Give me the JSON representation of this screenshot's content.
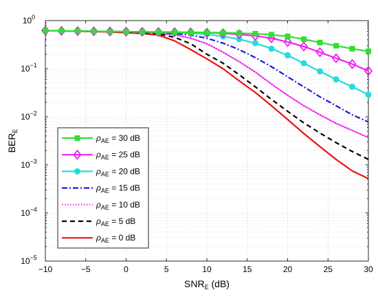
{
  "chart_data": {
    "type": "line",
    "xlabel": "SNR",
    "xlabel_sub": "E",
    "xlabel_suffix": " (dB)",
    "ylabel": "BER",
    "ylabel_sub": "E",
    "y_scale": "log",
    "xlim": [
      -10,
      30
    ],
    "ylim": [
      1e-05,
      1
    ],
    "x_ticks": [
      -10,
      -5,
      0,
      5,
      10,
      15,
      20,
      25,
      30
    ],
    "x_tick_labels": [
      "−10",
      "−5",
      "0",
      "5",
      "10",
      "15",
      "20",
      "25",
      "30"
    ],
    "y_ticks": [
      1e-05,
      0.0001,
      0.001,
      0.01,
      0.1,
      1
    ],
    "y_tick_exponents": [
      "−5",
      "−4",
      "−3",
      "−2",
      "−1",
      "0"
    ],
    "y_tick_base": "10",
    "grid": true,
    "legend_position": "bottom-left",
    "x": [
      -10,
      -8,
      -6,
      -4,
      -2,
      0,
      2,
      4,
      6,
      8,
      10,
      12,
      14,
      16,
      18,
      20,
      22,
      24,
      26,
      28,
      30
    ],
    "series": [
      {
        "name": "ρ_AE = 30 dB",
        "legend_symbol": "ρ",
        "legend_sub": "AE",
        "legend_value": " = 30 dB",
        "color": "#33dd33",
        "marker": "square",
        "dash": "solid",
        "values": [
          0.62,
          0.61,
          0.605,
          0.6,
          0.595,
          0.59,
          0.585,
          0.58,
          0.575,
          0.57,
          0.565,
          0.56,
          0.55,
          0.535,
          0.51,
          0.47,
          0.41,
          0.35,
          0.3,
          0.26,
          0.23
        ]
      },
      {
        "name": "ρ_AE = 25 dB",
        "legend_symbol": "ρ",
        "legend_sub": "AE",
        "legend_value": " = 25 dB",
        "color": "#ee22ee",
        "marker": "diamond",
        "dash": "solid",
        "values": [
          0.62,
          0.61,
          0.605,
          0.6,
          0.595,
          0.59,
          0.585,
          0.58,
          0.575,
          0.57,
          0.56,
          0.545,
          0.52,
          0.48,
          0.43,
          0.36,
          0.29,
          0.22,
          0.165,
          0.125,
          0.09
        ]
      },
      {
        "name": "ρ_AE = 20 dB",
        "legend_symbol": "ρ",
        "legend_sub": "AE",
        "legend_value": " = 20 dB",
        "color": "#22dddd",
        "marker": "circle",
        "dash": "solid",
        "values": [
          0.62,
          0.61,
          0.605,
          0.6,
          0.595,
          0.59,
          0.585,
          0.575,
          0.565,
          0.55,
          0.52,
          0.47,
          0.41,
          0.34,
          0.26,
          0.19,
          0.13,
          0.088,
          0.06,
          0.042,
          0.029
        ]
      },
      {
        "name": "ρ_AE = 15 dB",
        "legend_symbol": "ρ",
        "legend_sub": "AE",
        "legend_value": " = 15 dB",
        "color": "#1a1add",
        "marker": "none",
        "dash": "dashdot",
        "values": [
          0.62,
          0.61,
          0.605,
          0.6,
          0.595,
          0.59,
          0.58,
          0.565,
          0.54,
          0.5,
          0.43,
          0.34,
          0.25,
          0.17,
          0.11,
          0.068,
          0.042,
          0.026,
          0.017,
          0.011,
          0.0078
        ]
      },
      {
        "name": "ρ_AE = 10 dB",
        "legend_symbol": "ρ",
        "legend_sub": "AE",
        "legend_value": " = 10 dB",
        "color": "#ee22ee",
        "marker": "none",
        "dash": "dotted",
        "values": [
          0.62,
          0.61,
          0.605,
          0.6,
          0.595,
          0.585,
          0.57,
          0.55,
          0.51,
          0.43,
          0.33,
          0.22,
          0.14,
          0.085,
          0.048,
          0.028,
          0.017,
          0.011,
          0.0073,
          0.0052,
          0.0037
        ]
      },
      {
        "name": "ρ_AE = 5 dB",
        "legend_symbol": "ρ",
        "legend_sub": "AE",
        "legend_value": " = 5 dB",
        "color": "#000000",
        "marker": "none",
        "dash": "dashed",
        "values": [
          0.62,
          0.61,
          0.605,
          0.6,
          0.595,
          0.58,
          0.565,
          0.53,
          0.45,
          0.33,
          0.2,
          0.13,
          0.075,
          0.042,
          0.023,
          0.013,
          0.0075,
          0.0046,
          0.0029,
          0.0019,
          0.0013
        ]
      },
      {
        "name": "ρ_AE = 0 dB",
        "legend_symbol": "ρ",
        "legend_sub": "AE",
        "legend_value": " = 0 dB",
        "color": "#ee1111",
        "marker": "none",
        "dash": "solid",
        "values": [
          0.62,
          0.61,
          0.6,
          0.59,
          0.58,
          0.56,
          0.54,
          0.5,
          0.38,
          0.25,
          0.16,
          0.1,
          0.056,
          0.032,
          0.017,
          0.0088,
          0.0045,
          0.0024,
          0.0013,
          0.00075,
          0.00052
        ]
      }
    ]
  }
}
